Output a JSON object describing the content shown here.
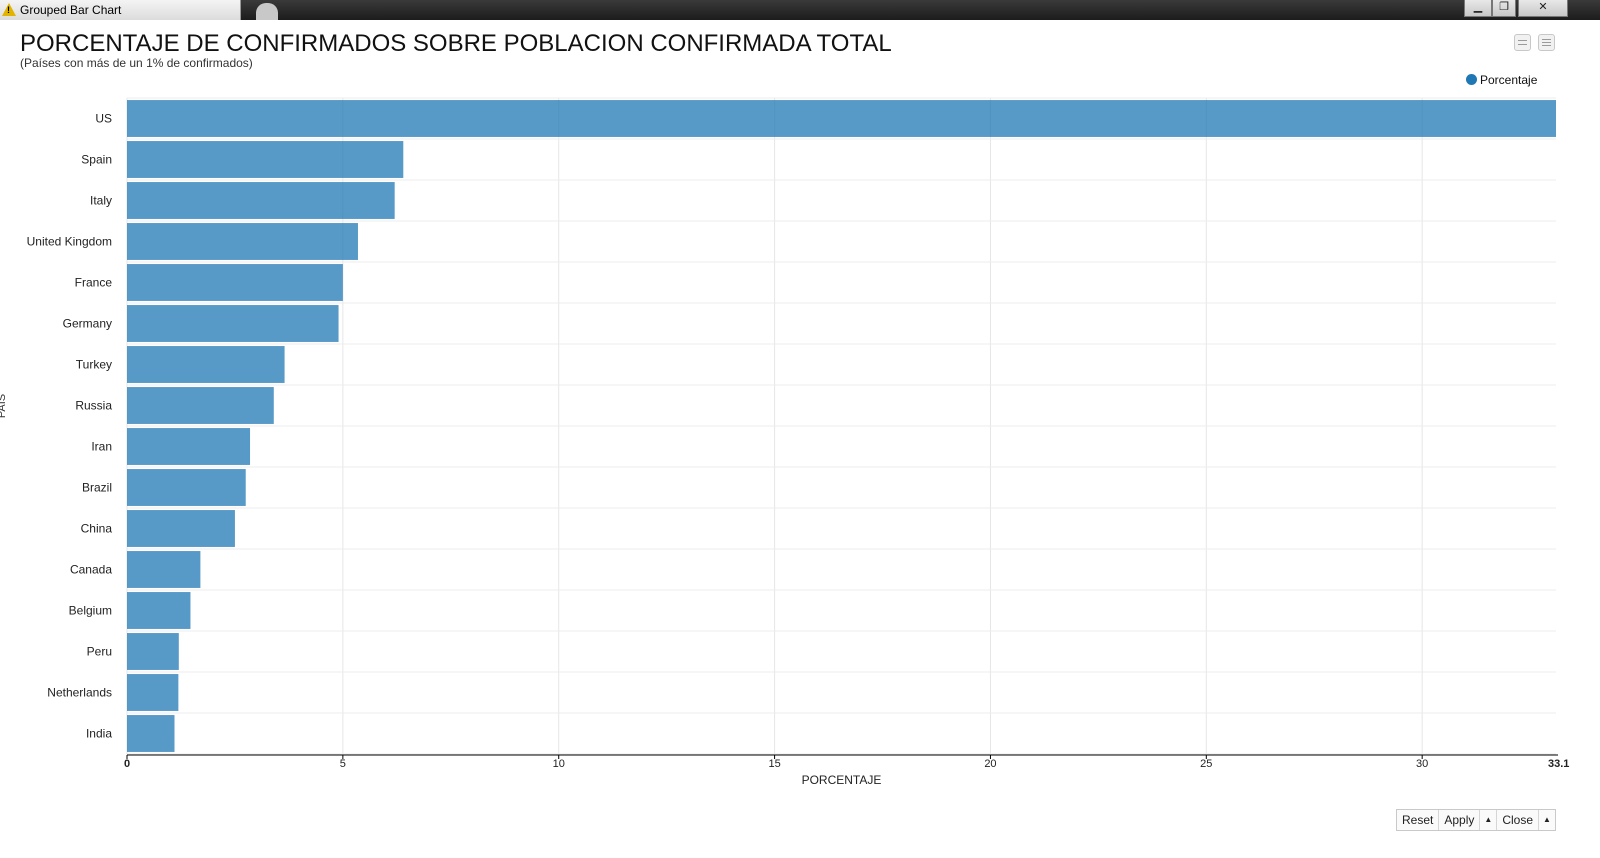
{
  "window": {
    "tab_title": "Grouped Bar Chart",
    "minimize_icon": "minimize-icon",
    "restore_icon": "restore-icon",
    "close_icon": "close-icon"
  },
  "chart_data": {
    "type": "bar",
    "orientation": "horizontal",
    "title": "PORCENTAJE DE CONFIRMADOS SOBRE POBLACION CONFIRMADA TOTAL",
    "subtitle": "(Países con más de un 1% de confirmados)",
    "xlabel": "PORCENTAJE",
    "ylabel": "PAIS",
    "xlim": [
      0,
      33.1
    ],
    "x_ticks": [
      0,
      5,
      10,
      15,
      20,
      25,
      30
    ],
    "x_end_label": "33.1",
    "grid": true,
    "legend_position": "top-right",
    "categories": [
      "US",
      "Spain",
      "Italy",
      "United Kingdom",
      "France",
      "Germany",
      "Turkey",
      "Russia",
      "Iran",
      "Brazil",
      "China",
      "Canada",
      "Belgium",
      "Peru",
      "Netherlands",
      "India"
    ],
    "series": [
      {
        "name": "Porcentaje",
        "color": "#1f77b4",
        "values": [
          33.1,
          6.4,
          6.2,
          5.35,
          5.0,
          4.9,
          3.65,
          3.4,
          2.85,
          2.75,
          2.5,
          1.7,
          1.47,
          1.2,
          1.19,
          1.1
        ]
      }
    ]
  },
  "footer": {
    "reset_label": "Reset",
    "apply_label": "Apply",
    "close_label": "Close",
    "arrow_icon": "triangle-up-icon",
    "arrow_glyph": "▲"
  }
}
